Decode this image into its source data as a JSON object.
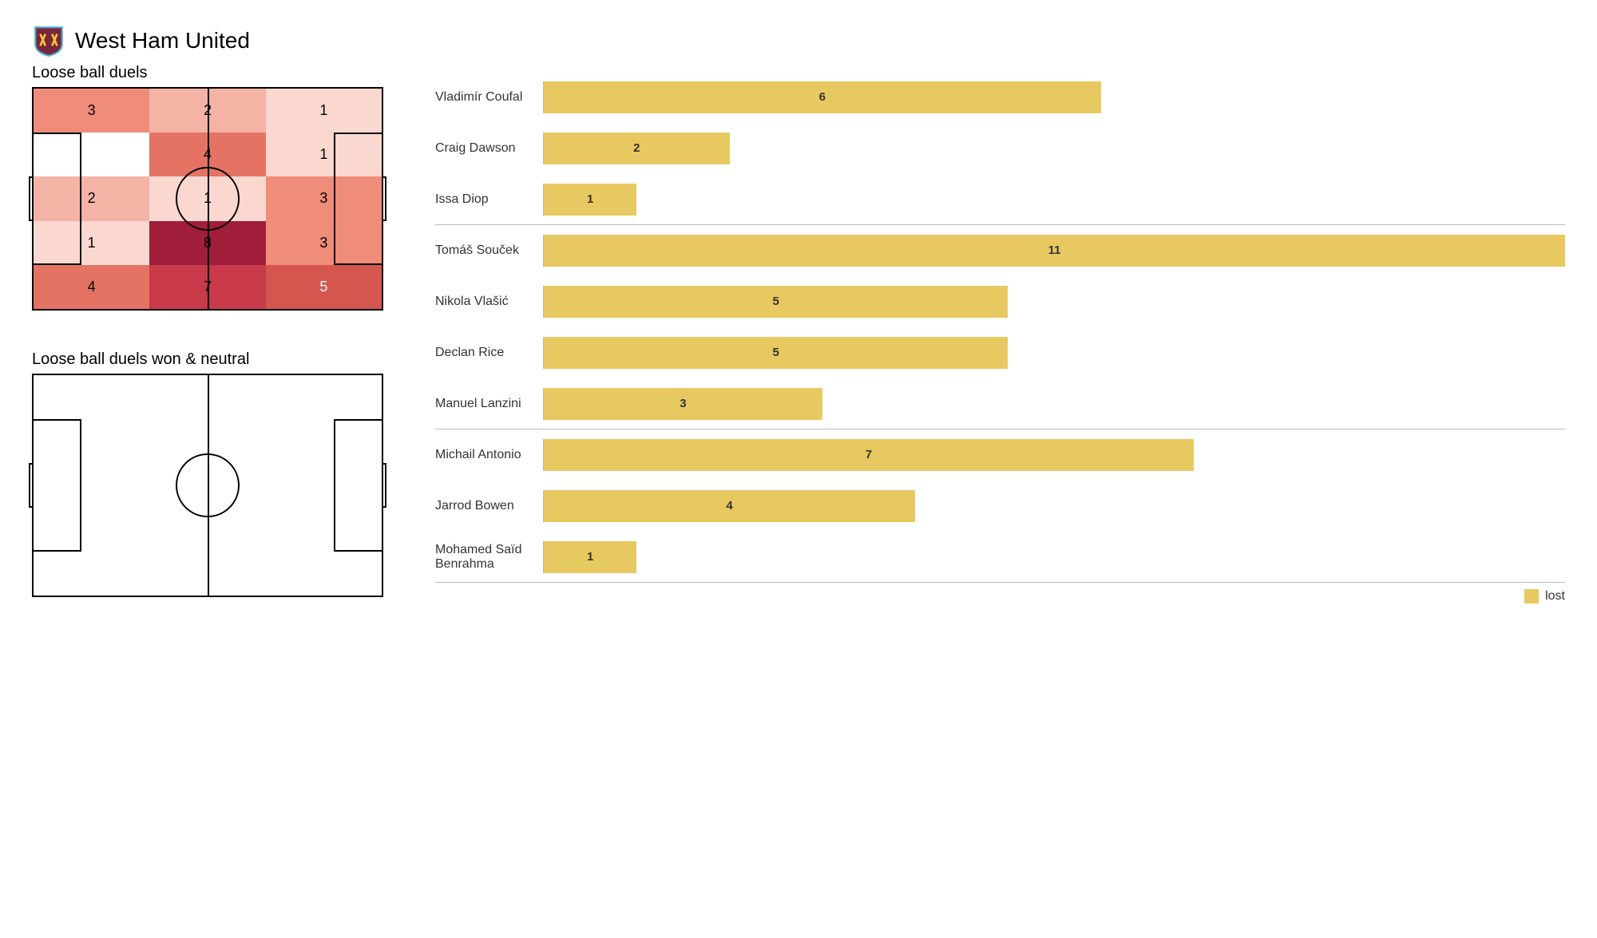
{
  "header": {
    "teamName": "West Ham United",
    "logoColors": {
      "primary": "#7a263a",
      "secondary": "#4fb3d9",
      "accent": "#f5c542"
    }
  },
  "heatmap": {
    "title": "Loose ball duels",
    "grid": {
      "cols": 3,
      "rows": 5
    },
    "cells": [
      {
        "value": 3,
        "color": "#f08c7a",
        "lightText": false
      },
      {
        "value": 2,
        "color": "#f5b3a6",
        "lightText": false
      },
      {
        "value": 1,
        "color": "#fad8d0",
        "lightText": false
      },
      {
        "value": null,
        "color": "#ffffff",
        "lightText": false
      },
      {
        "value": 4,
        "color": "#e57363",
        "lightText": false
      },
      {
        "value": 1,
        "color": "#fad8d0",
        "lightText": false
      },
      {
        "value": 2,
        "color": "#f5b3a6",
        "lightText": false
      },
      {
        "value": 1,
        "color": "#fad8d0",
        "lightText": false
      },
      {
        "value": 3,
        "color": "#f08c7a",
        "lightText": false
      },
      {
        "value": 1,
        "color": "#fad8d0",
        "lightText": false
      },
      {
        "value": 8,
        "color": "#a01e3a",
        "lightText": false
      },
      {
        "value": 3,
        "color": "#f08c7a",
        "lightText": false
      },
      {
        "value": 4,
        "color": "#e57363",
        "lightText": false
      },
      {
        "value": 7,
        "color": "#c93a4a",
        "lightText": false
      },
      {
        "value": 5,
        "color": "#d4564f",
        "lightText": true
      }
    ]
  },
  "emptyPitch": {
    "title": "Loose ball duels won & neutral"
  },
  "barChart": {
    "maxValue": 11,
    "barColor": "#e8c860",
    "textColor": "#333333",
    "players": [
      {
        "name": "Vladimír Coufal",
        "value": 6,
        "separator": false
      },
      {
        "name": "Craig Dawson",
        "value": 2,
        "separator": false
      },
      {
        "name": "Issa Diop",
        "value": 1,
        "separator": true
      },
      {
        "name": "Tomáš Souček",
        "value": 11,
        "separator": false
      },
      {
        "name": "Nikola Vlašić",
        "value": 5,
        "separator": false
      },
      {
        "name": "Declan Rice",
        "value": 5,
        "separator": false
      },
      {
        "name": "Manuel Lanzini",
        "value": 3,
        "separator": true
      },
      {
        "name": "Michail Antonio",
        "value": 7,
        "separator": false
      },
      {
        "name": "Jarrod Bowen",
        "value": 4,
        "separator": false
      },
      {
        "name": "Mohamed Saïd Benrahma",
        "value": 1,
        "separator": true
      }
    ],
    "legend": {
      "label": "lost",
      "color": "#e8c860"
    }
  }
}
